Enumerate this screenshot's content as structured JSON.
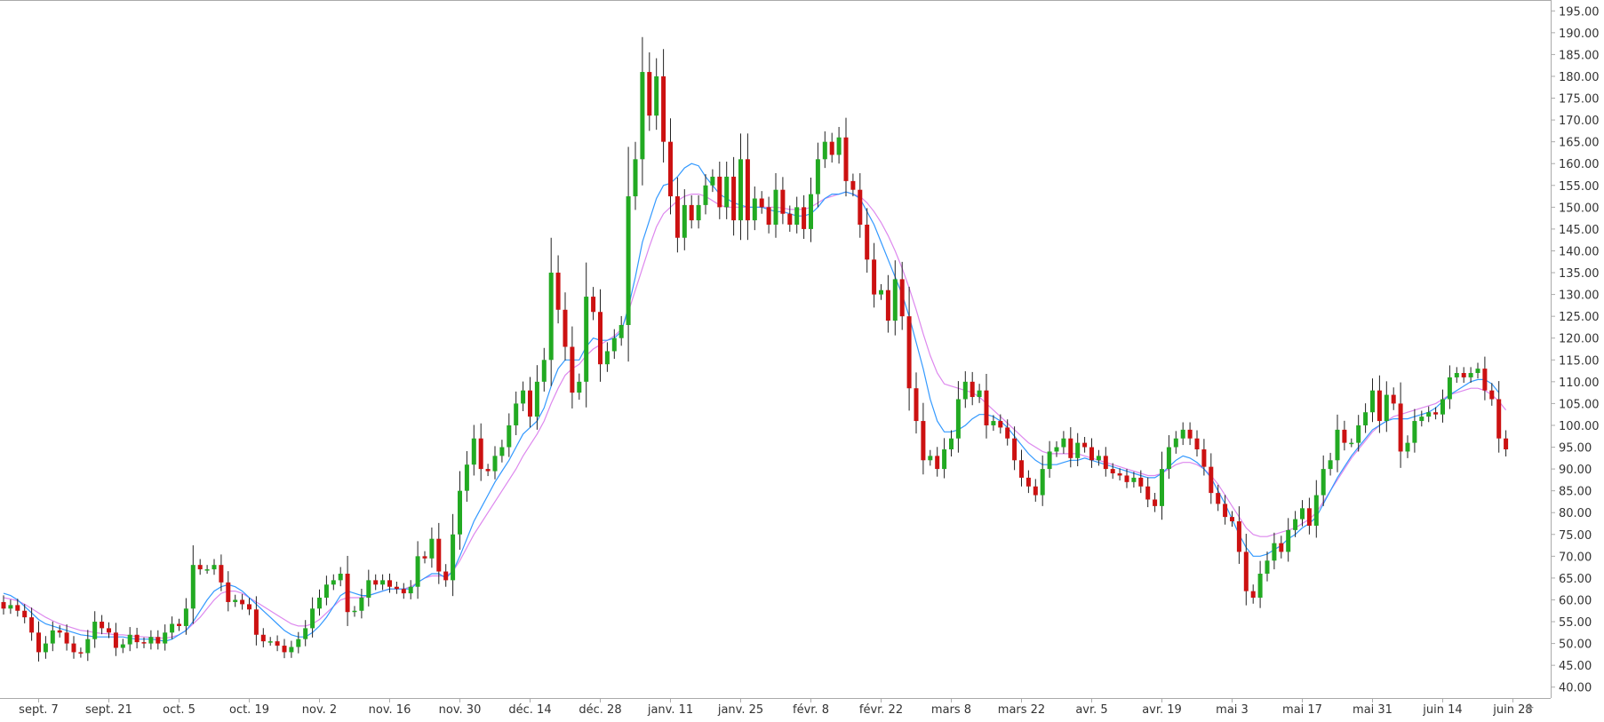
{
  "chart_data": {
    "type": "candlestick",
    "title": "",
    "xlabel": "",
    "ylabel": "",
    "ylim": [
      37.5,
      197.5
    ],
    "y_ticks": [
      40,
      45,
      50,
      55,
      60,
      65,
      70,
      75,
      80,
      85,
      90,
      95,
      100,
      105,
      110,
      115,
      120,
      125,
      130,
      135,
      140,
      145,
      150,
      155,
      160,
      165,
      170,
      175,
      180,
      185,
      190,
      195
    ],
    "y_tick_labels": [
      "40.00",
      "45.00",
      "50.00",
      "55.00",
      "60.00",
      "65.00",
      "70.00",
      "75.00",
      "80.00",
      "85.00",
      "90.00",
      "95.00",
      "100.00",
      "105.00",
      "110.00",
      "115.00",
      "120.00",
      "125.00",
      "130.00",
      "135.00",
      "140.00",
      "145.00",
      "150.00",
      "155.00",
      "160.00",
      "165.00",
      "170.00",
      "175.00",
      "180.00",
      "185.00",
      "190.00",
      "195.00"
    ],
    "x_ticks": [
      {
        "label": "sept. 7",
        "index": 5
      },
      {
        "label": "sept. 21",
        "index": 15
      },
      {
        "label": "oct. 5",
        "index": 25
      },
      {
        "label": "oct. 19",
        "index": 35
      },
      {
        "label": "nov. 2",
        "index": 45
      },
      {
        "label": "nov. 16",
        "index": 55
      },
      {
        "label": "nov. 30",
        "index": 65
      },
      {
        "label": "déc. 14",
        "index": 75
      },
      {
        "label": "déc. 28",
        "index": 85
      },
      {
        "label": "janv. 11",
        "index": 95
      },
      {
        "label": "janv. 25",
        "index": 105
      },
      {
        "label": "févr. 8",
        "index": 115
      },
      {
        "label": "févr. 22",
        "index": 125
      },
      {
        "label": "mars 8",
        "index": 135
      },
      {
        "label": "mars 22",
        "index": 145
      },
      {
        "label": "avr. 5",
        "index": 155
      },
      {
        "label": "avr. 19",
        "index": 165
      },
      {
        "label": "mai 3",
        "index": 175
      },
      {
        "label": "mai 17",
        "index": 185
      },
      {
        "label": "mai 31",
        "index": 195
      },
      {
        "label": "juin 14",
        "index": 205
      },
      {
        "label": "juin 28",
        "index": 215
      }
    ],
    "colors": {
      "up": "#22aa22",
      "down": "#cc1111",
      "ma_fast": "#3399ff",
      "ma_slow": "#dd88ee",
      "axis": "#aaaaaa",
      "text": "#333333"
    },
    "closes": [
      58,
      58.8,
      57.5,
      56,
      52.5,
      48,
      50,
      53,
      52.5,
      50,
      48,
      47.8,
      51,
      55,
      53.5,
      52.5,
      49,
      49.8,
      52,
      50.3,
      50,
      51.5,
      50,
      52.5,
      54.5,
      54,
      58,
      68,
      67,
      67,
      68,
      64,
      59.5,
      60,
      59,
      57.8,
      52,
      50.5,
      50.5,
      49.5,
      48,
      49.2,
      51,
      53.5,
      58,
      60.5,
      63.5,
      64.5,
      66,
      57.2,
      57.5,
      60.5,
      64.5,
      63.5,
      64.5,
      63,
      62.5,
      61.5,
      63,
      70,
      69.5,
      74,
      66.5,
      64.5,
      75,
      85,
      91,
      97,
      90,
      89.5,
      93,
      95,
      100,
      105,
      108,
      102,
      110,
      115,
      135,
      126.5,
      118,
      107.5,
      110,
      129.5,
      126,
      114,
      117,
      120,
      123,
      152.5,
      161,
      181,
      171,
      180,
      165,
      152.5,
      143,
      150.5,
      147,
      150.5,
      155,
      157,
      150,
      157,
      147,
      161,
      147,
      152,
      150,
      146,
      154,
      148.5,
      146,
      150,
      145,
      153,
      161,
      165,
      162,
      166,
      156,
      154,
      146,
      138,
      130,
      131,
      124,
      133.5,
      125,
      108.5,
      101,
      92,
      93,
      90,
      94.5,
      97,
      106,
      110,
      106.5,
      108,
      100,
      101,
      99.5,
      97,
      92,
      88,
      86,
      84,
      90,
      94,
      95,
      97,
      92.5,
      96,
      95,
      92,
      93,
      90,
      89,
      88.5,
      87,
      88,
      86,
      83,
      81.5,
      90,
      95,
      97,
      99,
      97,
      94.5,
      90.5,
      84.5,
      82,
      79,
      78,
      71,
      62,
      60.5,
      66,
      69,
      73,
      71,
      76,
      78.5,
      81,
      77,
      84,
      90,
      92,
      99,
      96,
      96,
      100,
      103,
      108,
      101,
      107,
      105,
      94,
      96,
      101,
      102,
      103,
      102.5,
      106,
      111,
      112,
      111,
      112,
      113,
      108,
      106,
      97,
      94.5
    ],
    "ma_fast": [
      61.5,
      61,
      60,
      58.5,
      57,
      55.5,
      54.5,
      54,
      53.5,
      53,
      52.5,
      52,
      51.8,
      51.5,
      51.5,
      51.5,
      51.5,
      51.5,
      51.2,
      51,
      51,
      51,
      50.8,
      50.5,
      51,
      52,
      53,
      55,
      57.5,
      60,
      62,
      63,
      63.5,
      63,
      62,
      60.5,
      59,
      57.5,
      56,
      54.5,
      53,
      52,
      51.5,
      51.5,
      52.5,
      54,
      56,
      58.5,
      61,
      62,
      61.5,
      61,
      61,
      61.5,
      62,
      62.5,
      62.5,
      62.5,
      62.5,
      64,
      65,
      66,
      66,
      65,
      66.5,
      70,
      74,
      78,
      81,
      84,
      87,
      89.5,
      92,
      95,
      98,
      99.5,
      101,
      104,
      109,
      113,
      115,
      115,
      115,
      118,
      120,
      119.5,
      119.5,
      120,
      121.5,
      127,
      134,
      142,
      147,
      152,
      155,
      155.5,
      157,
      159,
      160,
      159.5,
      157,
      155,
      153,
      152,
      151,
      150.5,
      150,
      150,
      150,
      149.5,
      149,
      149,
      148.5,
      148,
      148,
      148.5,
      150,
      152,
      153,
      153,
      153.5,
      153,
      152,
      149,
      146,
      142,
      138,
      134,
      130,
      125,
      119,
      113,
      106,
      101,
      98.5,
      98.5,
      99,
      100,
      101.5,
      102.5,
      102.5,
      102,
      101,
      99.5,
      97.5,
      95.5,
      93.5,
      92,
      91,
      91,
      91,
      91.5,
      92,
      92,
      92.5,
      92,
      91.5,
      91,
      90.5,
      90,
      89.5,
      89,
      88.5,
      88,
      88,
      89,
      90.5,
      92,
      93,
      92.5,
      91.5,
      90,
      88,
      85,
      82,
      78.5,
      75,
      72,
      70,
      70,
      70.5,
      71.5,
      72.5,
      74,
      75,
      76.5,
      77.5,
      79,
      82,
      85,
      88,
      90.5,
      93,
      95,
      97,
      99,
      100,
      101,
      101.5,
      101.5,
      101.5,
      102,
      102.5,
      103,
      104,
      105.5,
      107,
      108,
      109,
      110,
      110.5,
      110.5,
      109.5,
      107.5
    ],
    "ma_slow": [
      60.5,
      60.2,
      59.8,
      59,
      58,
      57,
      56,
      55.2,
      54.5,
      54,
      53.5,
      53,
      52.8,
      52.5,
      52.3,
      52.2,
      52,
      52,
      51.8,
      51.6,
      51.5,
      51.4,
      51.3,
      51.2,
      51.5,
      52,
      53,
      54.5,
      56,
      58,
      60,
      61.5,
      62,
      62,
      61.5,
      60.5,
      59.5,
      58.5,
      57.5,
      56.5,
      55.5,
      54.5,
      54,
      54,
      54.5,
      55.5,
      57,
      58.5,
      60,
      60.5,
      60.5,
      60.5,
      61,
      61.5,
      62,
      62.5,
      62.5,
      62.5,
      63,
      64,
      65,
      65.5,
      65.5,
      65.5,
      66.5,
      69,
      72,
      75,
      77.5,
      80,
      82.5,
      85,
      87.5,
      90,
      93,
      95.5,
      98,
      101,
      105,
      108.5,
      111.5,
      113,
      114,
      116,
      117.5,
      118.5,
      119.5,
      120.5,
      122,
      126,
      131,
      136,
      141,
      145.5,
      148.5,
      150,
      151.5,
      152.5,
      153,
      153,
      152.5,
      151.5,
      150.5,
      150,
      150,
      150,
      150,
      150,
      150,
      150,
      150,
      149.8,
      149.5,
      149.5,
      149.5,
      150,
      151,
      152,
      152.5,
      153,
      153.5,
      153,
      152.5,
      151,
      149,
      146.5,
      143.5,
      140,
      136,
      131.5,
      126.5,
      121,
      116,
      112,
      109.5,
      109,
      108.5,
      108,
      107.5,
      106.5,
      105,
      103.5,
      102,
      100.5,
      99,
      97.5,
      96,
      95,
      94,
      93.5,
      93.5,
      93.5,
      93.5,
      93.5,
      93,
      92.5,
      92,
      91.5,
      91,
      90.5,
      90,
      89.5,
      89,
      88.5,
      88.5,
      89,
      90,
      91,
      91.5,
      91.5,
      91,
      90,
      88.5,
      86.5,
      84,
      81.5,
      79,
      76.5,
      75,
      74.5,
      74.5,
      75,
      75.5,
      76,
      76.5,
      77.5,
      78.5,
      80,
      82.5,
      85,
      87.5,
      90,
      92.5,
      94.5,
      96.5,
      98.5,
      100,
      101,
      102,
      102.5,
      103,
      103.5,
      104,
      104.5,
      105,
      106,
      107,
      107.5,
      108,
      108.5,
      108.5,
      108,
      107,
      105.5,
      103.5
    ]
  },
  "nav_marker": "+"
}
